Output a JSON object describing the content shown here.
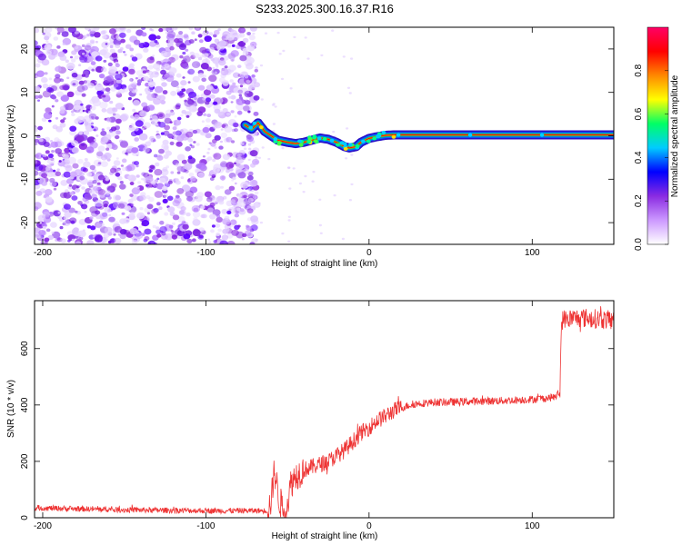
{
  "title": "S233.2025.300.16.37.R16",
  "chart_data": [
    {
      "type": "heatmap",
      "panel": "spectrogram",
      "xlabel": "Height of straight line (km)",
      "ylabel": "Frequency (Hz)",
      "xlim": [
        -205,
        150
      ],
      "ylim": [
        -25,
        25
      ],
      "xticks": [
        -200,
        -100,
        0,
        100
      ],
      "yticks": [
        -20,
        -10,
        0,
        10,
        20
      ],
      "noise_region_x": [
        -205,
        -72
      ],
      "ridge": {
        "x": [
          -76,
          -72,
          -68,
          -64,
          -60,
          -56,
          -50,
          -45,
          -40,
          -35,
          -30,
          -25,
          -20,
          -15,
          -12,
          -8,
          -5,
          0,
          5,
          10,
          15,
          20,
          40,
          60,
          80,
          100,
          120,
          150
        ],
        "freq": [
          2.5,
          1.5,
          3.0,
          1.0,
          0.0,
          -1.0,
          -1.5,
          -1.8,
          -1.5,
          -1.0,
          -0.5,
          -0.8,
          -1.5,
          -2.5,
          -2.8,
          -2.5,
          -1.5,
          -0.6,
          -0.2,
          0.1,
          0.2,
          0.2,
          0.2,
          0.2,
          0.2,
          0.2,
          0.2,
          0.2
        ]
      },
      "colorbar": {
        "label": "Normalized spectral amplitude",
        "range": [
          0,
          1
        ],
        "ticks": [
          "0.0",
          "0.2",
          "0.4",
          "0.6",
          "0.8"
        ],
        "tick_values": [
          0,
          0.2,
          0.4,
          0.6,
          0.8
        ],
        "colors": [
          "#ffffff",
          "#cc99ff",
          "#8a2be2",
          "#0000ff",
          "#00ccff",
          "#00ff66",
          "#ffff00",
          "#ff8800",
          "#ff0000",
          "#ff0066"
        ]
      }
    },
    {
      "type": "line",
      "panel": "snr",
      "xlabel": "Height of straight line (km)",
      "ylabel": "SNR (10 * v/v)",
      "xlim": [
        -205,
        150
      ],
      "ylim": [
        0,
        770
      ],
      "xticks": [
        -200,
        -100,
        0,
        100
      ],
      "yticks": [
        0,
        200,
        400,
        600
      ],
      "color": "#ee3333",
      "series": [
        {
          "name": "SNR",
          "x": [
            -205,
            -150,
            -100,
            -62,
            -60,
            -58,
            -55,
            -52,
            -50,
            -48,
            -45,
            -40,
            -35,
            -30,
            -25,
            -20,
            -15,
            -10,
            -5,
            0,
            5,
            10,
            15,
            20,
            25,
            30,
            40,
            50,
            60,
            80,
            100,
            110,
            115,
            116,
            117,
            118,
            120,
            130,
            140,
            150
          ],
          "y": [
            35,
            28,
            25,
            25,
            60,
            170,
            60,
            30,
            50,
            120,
            150,
            170,
            180,
            190,
            200,
            220,
            240,
            270,
            300,
            320,
            345,
            360,
            380,
            390,
            400,
            405,
            410,
            410,
            412,
            415,
            420,
            425,
            430,
            440,
            450,
            700,
            705,
            710,
            705,
            700
          ]
        }
      ]
    }
  ]
}
